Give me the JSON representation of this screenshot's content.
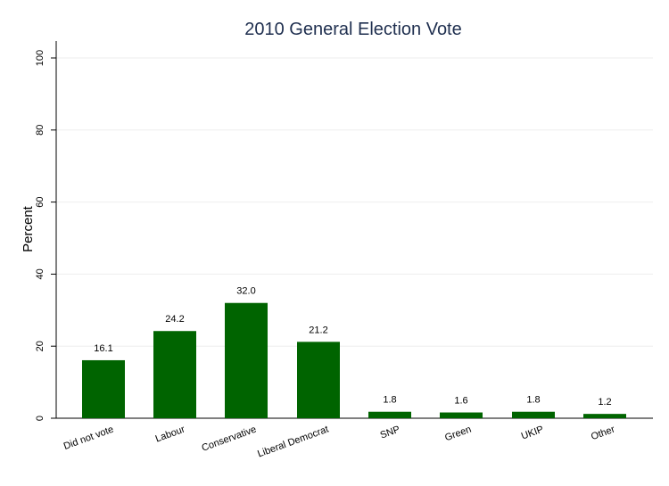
{
  "chart_data": {
    "type": "bar",
    "title": "2010 General Election Vote",
    "xlabel": "",
    "ylabel": "Percent",
    "categories": [
      "Did not vote",
      "Labour",
      "Conservative",
      "Liberal Democrat",
      "SNP",
      "Green",
      "UKIP",
      "Other"
    ],
    "values": [
      16.1,
      24.2,
      32.0,
      21.2,
      1.8,
      1.6,
      1.8,
      1.2
    ],
    "data_labels": [
      "16.1",
      "24.2",
      "32.0",
      "21.2",
      "1.8",
      "1.6",
      "1.8",
      "1.2"
    ],
    "ylim": [
      0,
      100
    ],
    "yticks": [
      0,
      20,
      40,
      60,
      80,
      100
    ],
    "grid": true,
    "colors": {
      "bar": "#006400",
      "title": "#1f2f4f",
      "grid": "#eeeeee",
      "axis": "#000000"
    }
  }
}
